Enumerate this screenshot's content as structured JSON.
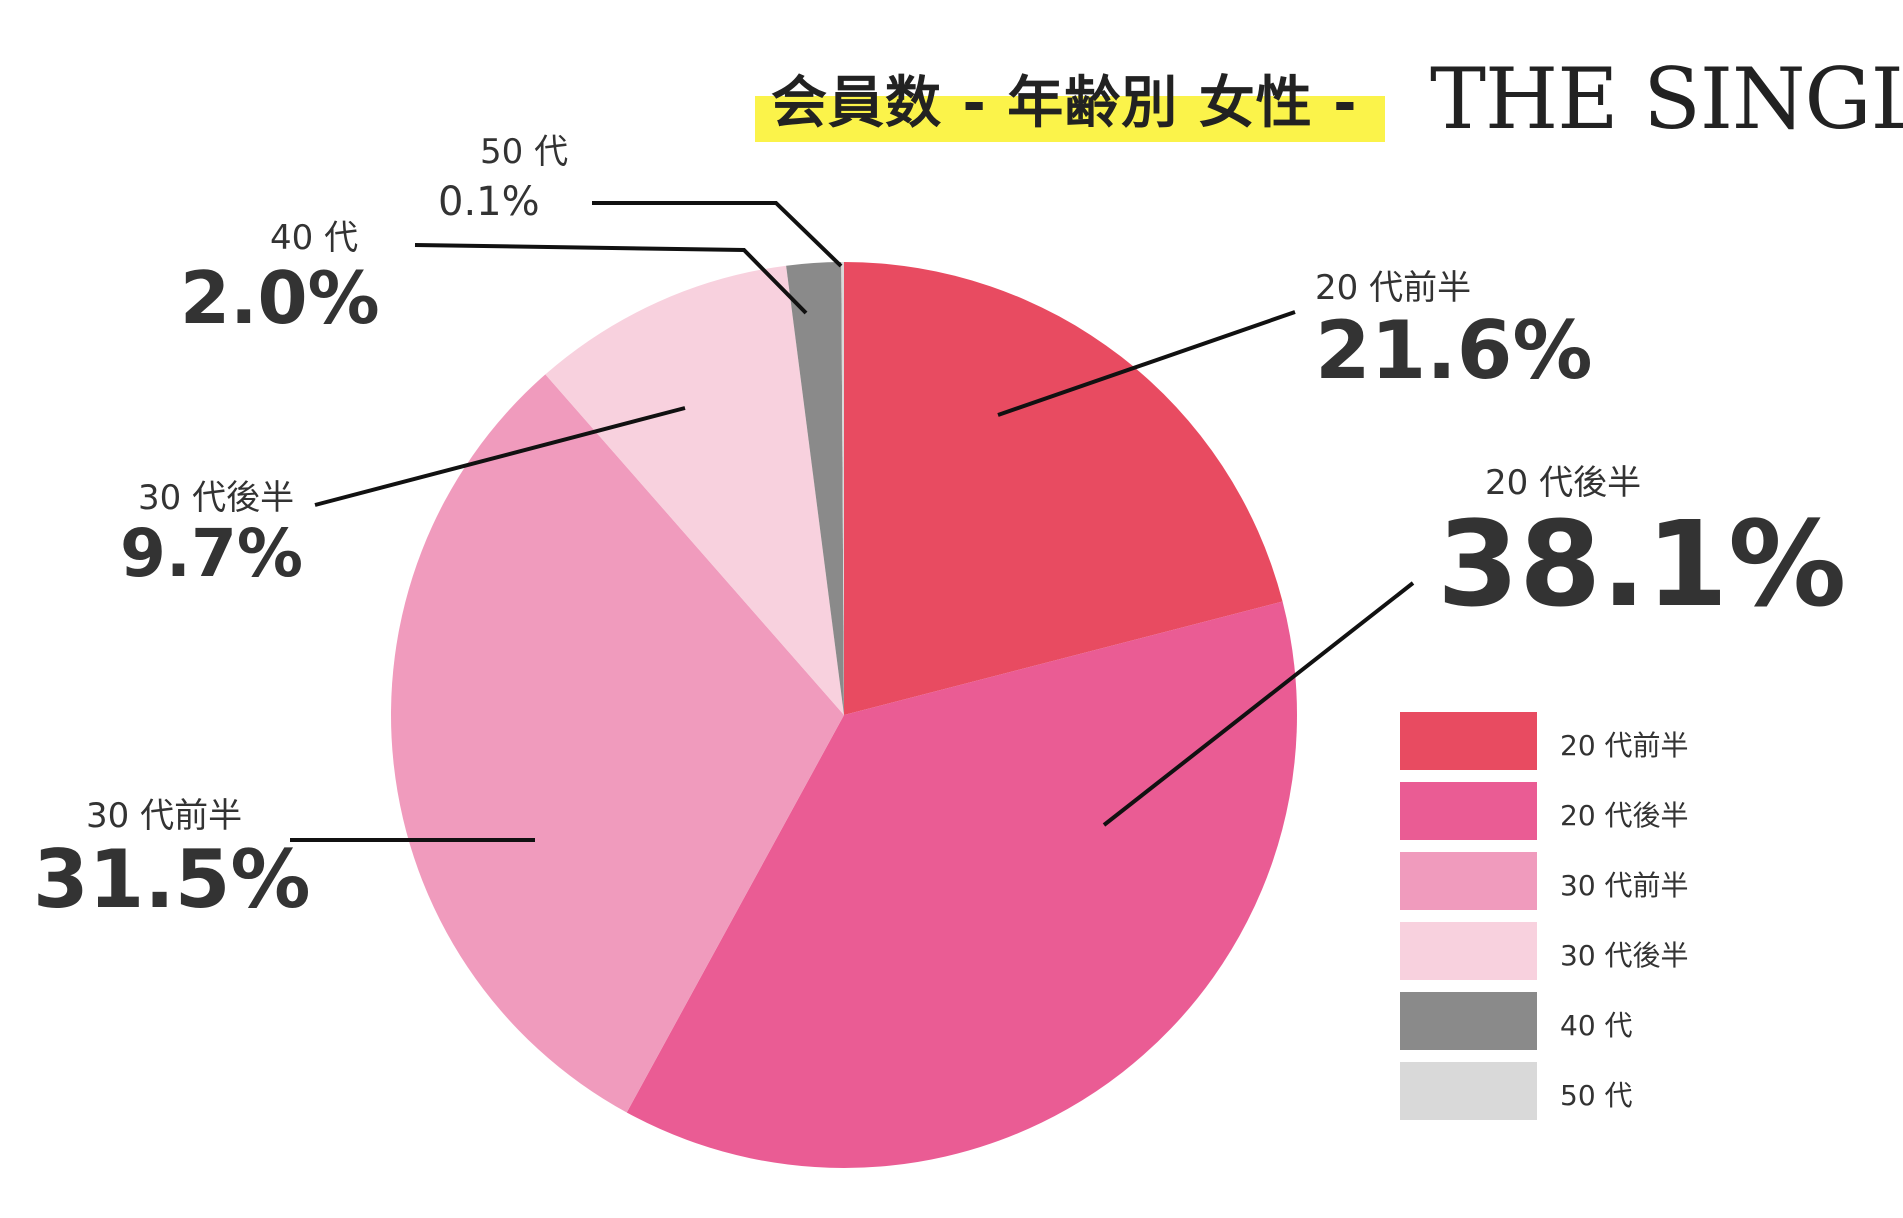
{
  "title": "会員数 - 年齢別 女性 -",
  "brand": "THE SINGLE",
  "chart_data": {
    "type": "pie",
    "title": "会員数 - 年齢別 女性 -",
    "unit": "%",
    "categories": [
      "20 代前半",
      "20 代後半",
      "30 代前半",
      "30 代後半",
      "40 代",
      "50 代"
    ],
    "values": [
      21.6,
      38.1,
      31.5,
      9.7,
      2.0,
      0.1
    ],
    "labels": [
      "21.6%",
      "38.1%",
      "31.5%",
      "9.7%",
      "2.0%",
      "0.1%"
    ],
    "colors": [
      "#e84b61",
      "#ea5c94",
      "#f09bbd",
      "#f8d1de",
      "#8a8a8a",
      "#d9d9d9"
    ],
    "legend": "right",
    "start_angle_deg": 0,
    "direction": "clockwise"
  },
  "legend_items": [
    {
      "label": "20 代前半"
    },
    {
      "label": "20 代後半"
    },
    {
      "label": "30 代前半"
    },
    {
      "label": "30 代後半"
    },
    {
      "label": "40 代"
    },
    {
      "label": "50 代"
    }
  ]
}
